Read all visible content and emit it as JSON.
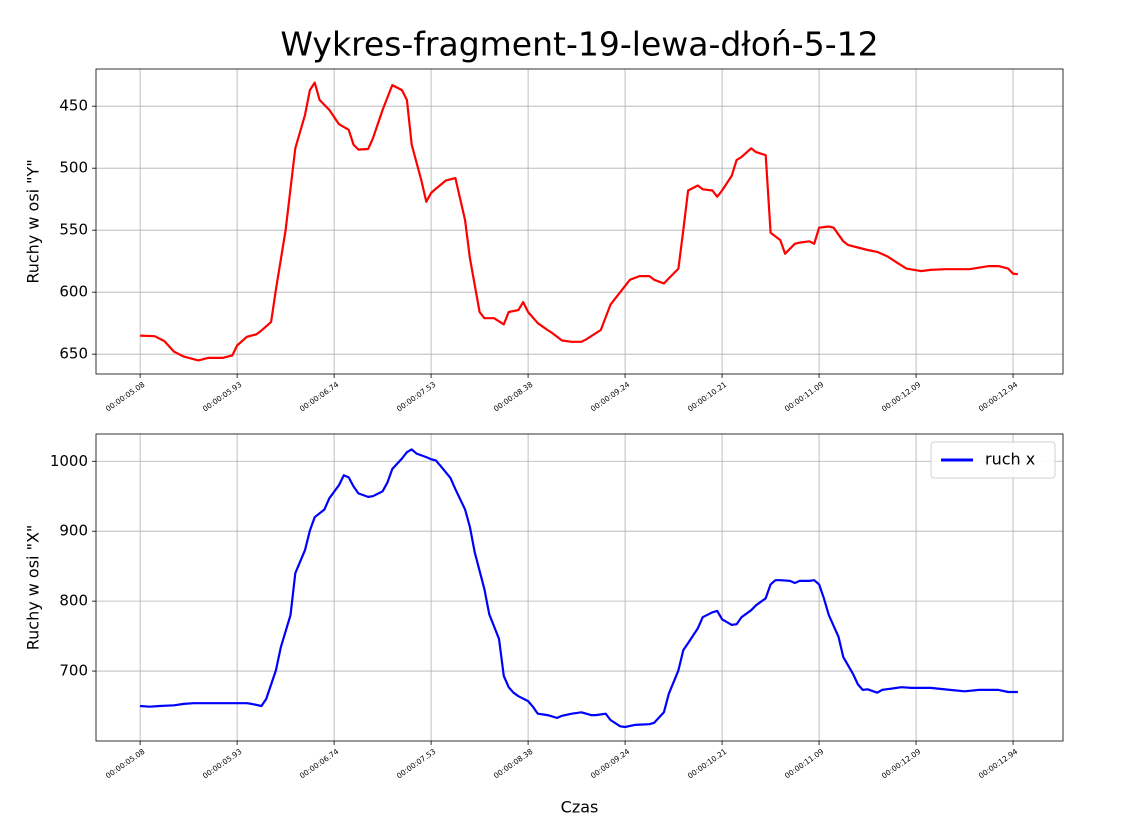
{
  "chart_data": [
    {
      "type": "line",
      "title": "Wykres-fragment-19-lewa-dłoń-5-12",
      "ylabel": "Ruchy w osi \"Y\"",
      "x": [
        0,
        3,
        5,
        7,
        9,
        12,
        14,
        17,
        19,
        20,
        22,
        24,
        25,
        27,
        28,
        30,
        32,
        34,
        35,
        36,
        37,
        39,
        41,
        43,
        44,
        45,
        47,
        48,
        50,
        52,
        54,
        55,
        56,
        58,
        59,
        60,
        61,
        63,
        65,
        67,
        68,
        70,
        71,
        73,
        75,
        76,
        78,
        79,
        80,
        82,
        84,
        85,
        87,
        89,
        91,
        92,
        95,
        97,
        99,
        101,
        103,
        105,
        106,
        108,
        109,
        111,
        112,
        113,
        115,
        116,
        118,
        119,
        120,
        122,
        123,
        124,
        126,
        127,
        129,
        130,
        132,
        133,
        135,
        136,
        138,
        139,
        140,
        142,
        143,
        145,
        146,
        148,
        150,
        152,
        154,
        156,
        158,
        161,
        163,
        166,
        171,
        175,
        177,
        179,
        180,
        181
      ],
      "series": [
        {
          "color": "#ff0000",
          "values": [
            635,
            635.5,
            639.5,
            648,
            652,
            655,
            653,
            653,
            651,
            643,
            636,
            634,
            631,
            624,
            598,
            550,
            484,
            457,
            437,
            431,
            445,
            453,
            464.5,
            469,
            481,
            485,
            484.5,
            476,
            453,
            433,
            437,
            445,
            481,
            510,
            527,
            520,
            516.5,
            510,
            508,
            542,
            572.5,
            616,
            621,
            621,
            626,
            616,
            614.5,
            608,
            616,
            625,
            630.5,
            633,
            639,
            640,
            640,
            638,
            630.5,
            610,
            600,
            590,
            587,
            587,
            590,
            593,
            589,
            581,
            550,
            518,
            514,
            517,
            518,
            523,
            518,
            506,
            493.5,
            491,
            484,
            487,
            489.5,
            552,
            558,
            569,
            561,
            560,
            559,
            561,
            548,
            547,
            548,
            559,
            562,
            564,
            566,
            567.5,
            571,
            576,
            581,
            583,
            582,
            581.5,
            581.5,
            579,
            579,
            581,
            585,
            585.5
          ]
        }
      ],
      "xlim": [
        -9.1,
        190.3
      ],
      "xticks": [
        {
          "value": 0,
          "label": "00:00:05.08"
        },
        {
          "value": 20,
          "label": "00:00:05.93"
        },
        {
          "value": 40,
          "label": "00:00:06.74"
        },
        {
          "value": 60,
          "label": "00:00:07.53"
        },
        {
          "value": 80,
          "label": "00:00:08.38"
        },
        {
          "value": 100,
          "label": "00:00:09.24"
        },
        {
          "value": 120,
          "label": "00:00:10.21"
        },
        {
          "value": 140,
          "label": "00:00:11.09"
        },
        {
          "value": 160,
          "label": "00:00:12.09"
        },
        {
          "value": 180,
          "label": "00:00:12.94"
        }
      ],
      "ylim": [
        666,
        420
      ],
      "yticks": [
        450,
        500,
        550,
        600,
        650
      ],
      "grid": true
    },
    {
      "type": "line",
      "xlabel": "Czas",
      "ylabel": "Ruchy w osi \"X\"",
      "x": [
        0,
        2,
        4,
        7,
        9,
        11,
        13,
        19,
        22,
        23,
        25,
        26,
        28,
        29,
        31,
        32,
        34,
        35,
        36,
        38,
        39,
        41,
        42,
        43,
        44,
        45,
        47,
        48,
        50,
        51,
        52,
        54,
        55,
        56,
        57,
        59,
        60,
        61,
        62,
        64,
        65,
        67,
        68,
        69,
        71,
        72,
        74,
        75,
        76,
        77,
        78,
        80,
        81,
        82,
        84,
        86,
        87,
        89,
        91,
        93,
        94,
        96,
        97,
        99,
        100,
        102,
        105,
        106,
        108,
        109,
        111,
        112,
        113,
        115,
        116,
        118,
        119,
        120,
        122,
        123,
        124,
        126,
        127,
        129,
        130,
        131,
        132,
        134,
        135,
        136,
        138,
        139,
        140,
        141,
        142,
        144,
        145,
        147,
        148,
        149,
        150,
        152,
        153,
        156,
        157,
        159,
        163,
        167,
        170,
        173,
        175,
        177,
        179,
        181
      ],
      "series": [
        {
          "name": "ruch x",
          "color": "#0000ff",
          "values": [
            650,
            649,
            650,
            651,
            653,
            654,
            654,
            654,
            654,
            653,
            650,
            660,
            701,
            734,
            780,
            840,
            873,
            901,
            920,
            931,
            947,
            966,
            980,
            977,
            964,
            954,
            949,
            950,
            957,
            970,
            989,
            1004,
            1013,
            1017,
            1011,
            1006,
            1003,
            1001,
            993,
            976,
            960,
            931,
            906,
            870,
            817,
            781,
            746,
            693,
            677,
            669,
            664,
            657,
            649,
            639,
            637,
            633,
            636,
            639,
            641,
            637,
            637,
            639,
            630,
            621,
            620,
            623,
            624,
            626,
            641,
            667,
            701,
            730,
            740,
            761,
            777,
            784,
            786,
            774,
            766,
            767,
            777,
            787,
            794,
            804,
            824,
            830,
            830,
            829,
            826,
            829,
            829,
            830,
            824,
            804,
            780,
            749,
            720,
            696,
            681,
            673,
            674,
            669,
            673,
            676,
            677,
            676,
            676,
            673,
            671,
            673,
            673,
            673,
            670,
            670
          ]
        }
      ],
      "xlim": [
        -9.1,
        190.3
      ],
      "xticks": [
        {
          "value": 0,
          "label": "00:00:05.08"
        },
        {
          "value": 20,
          "label": "00:00:05.93"
        },
        {
          "value": 40,
          "label": "00:00:06.74"
        },
        {
          "value": 60,
          "label": "00:00:07.53"
        },
        {
          "value": 80,
          "label": "00:00:08.38"
        },
        {
          "value": 100,
          "label": "00:00:09.24"
        },
        {
          "value": 120,
          "label": "00:00:10.21"
        },
        {
          "value": 140,
          "label": "00:00:11.09"
        },
        {
          "value": 160,
          "label": "00:00:12.09"
        },
        {
          "value": 180,
          "label": "00:00:12.94"
        }
      ],
      "ylim": [
        600,
        1039
      ],
      "yticks": [
        700,
        800,
        900,
        1000
      ],
      "grid": true,
      "legend": "upper right"
    }
  ]
}
